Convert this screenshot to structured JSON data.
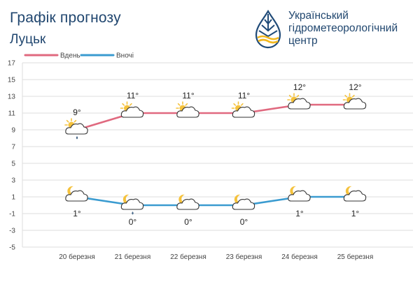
{
  "header": {
    "title": "Графік прогнозу",
    "city": "Луцьк",
    "org_line1": "Український",
    "org_line2": "гідрометеорологічний",
    "org_line3": "центр"
  },
  "colors": {
    "day": "#e0697f",
    "night": "#3a9bd0",
    "grid": "#dddddd",
    "sun": "#f5c23c",
    "cloud_stroke": "#333333",
    "moon": "#f5c23c",
    "rain": "#4a6a8a"
  },
  "chart_data": {
    "type": "line",
    "categories": [
      "20 березня",
      "21 березня",
      "22 березня",
      "23 березня",
      "24 березня",
      "25 березня"
    ],
    "ylim": [
      -5,
      17
    ],
    "yticks": [
      -5,
      -3,
      -1,
      1,
      3,
      5,
      7,
      9,
      11,
      13,
      15,
      17
    ],
    "legend_position": "top-left",
    "grid": true,
    "series": [
      {
        "name": "Вдень",
        "values": [
          9,
          11,
          11,
          11,
          12,
          12
        ],
        "labels": [
          "9°",
          "11°",
          "11°",
          "11°",
          "12°",
          "12°"
        ],
        "icons": [
          "sun-cloud-rain-icon",
          "sun-cloud-icon",
          "sun-cloud-icon",
          "sun-cloud-icon",
          "sun-cloud-icon",
          "sun-cloud-icon"
        ]
      },
      {
        "name": "Вночі",
        "values": [
          1,
          0,
          0,
          0,
          1,
          1
        ],
        "labels": [
          "1°",
          "0°",
          "0°",
          "0°",
          "1°",
          "1°"
        ],
        "icons": [
          "moon-cloud-icon",
          "moon-cloud-rain-icon",
          "moon-cloud-icon",
          "moon-cloud-icon",
          "moon-cloud-icon",
          "moon-cloud-icon"
        ]
      }
    ]
  }
}
